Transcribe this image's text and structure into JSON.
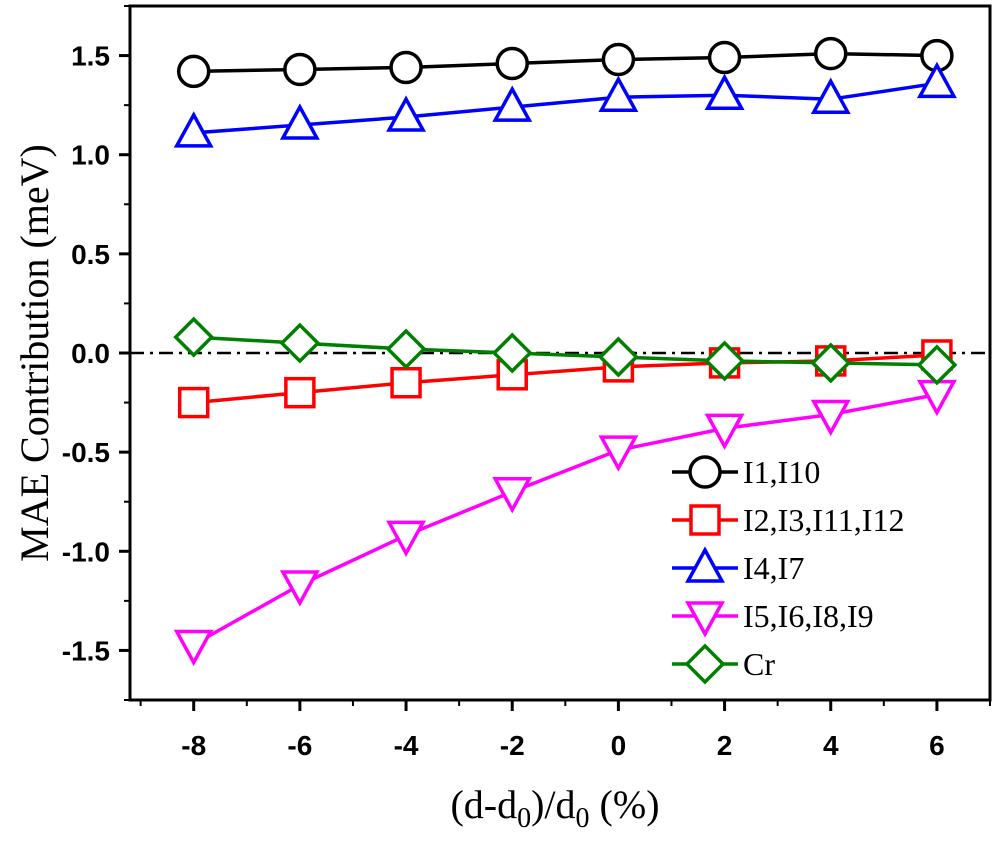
{
  "chart_data": {
    "type": "line",
    "xlabel": "(d-d0)/d0 (%)",
    "xlabel_parts": {
      "a": "(d-d",
      "sub1": "0",
      "b": ")/d",
      "sub2": "0",
      "c": " (%)"
    },
    "ylabel": "MAE Contribution (meV)",
    "xlim": [
      -9.2,
      7.0
    ],
    "ylim": [
      -1.75,
      1.75
    ],
    "x": [
      -8,
      -6,
      -4,
      -2,
      0,
      2,
      4,
      6
    ],
    "x_ticks": [
      -8,
      -6,
      -4,
      -2,
      0,
      2,
      4,
      6
    ],
    "x_tick_labels": [
      "-8",
      "-6",
      "-4",
      "-2",
      "0",
      "2",
      "4",
      "6"
    ],
    "y_ticks": [
      -1.5,
      -1.0,
      -0.5,
      0.0,
      0.5,
      1.0,
      1.5
    ],
    "y_tick_labels": [
      "-1.5",
      "-1.0",
      "-0.5",
      "0.0",
      "0.5",
      "1.0",
      "1.5"
    ],
    "reference_line": {
      "y": 0,
      "style": "dash-dot",
      "color": "#000000"
    },
    "legend_position": "bottom-right",
    "series": [
      {
        "name": "I1,I10",
        "color": "#000000",
        "marker": "circle",
        "values": [
          1.42,
          1.43,
          1.44,
          1.46,
          1.48,
          1.49,
          1.51,
          1.5
        ]
      },
      {
        "name": "I2,I3,I11,I12",
        "color": "#ff0000",
        "marker": "square",
        "values": [
          -0.25,
          -0.2,
          -0.15,
          -0.11,
          -0.07,
          -0.05,
          -0.04,
          -0.01
        ]
      },
      {
        "name": "I4,I7",
        "color": "#0000ff",
        "marker": "triangle-up",
        "values": [
          1.11,
          1.15,
          1.19,
          1.24,
          1.29,
          1.3,
          1.28,
          1.36
        ]
      },
      {
        "name": "I5,I6,I8,I9",
        "color": "#ff00ff",
        "marker": "triangle-down",
        "values": [
          -1.47,
          -1.17,
          -0.92,
          -0.7,
          -0.49,
          -0.38,
          -0.31,
          -0.21
        ]
      },
      {
        "name": "Cr",
        "color": "#008000",
        "marker": "diamond",
        "values": [
          0.08,
          0.05,
          0.02,
          0.0,
          -0.02,
          -0.04,
          -0.05,
          -0.06
        ]
      }
    ]
  }
}
